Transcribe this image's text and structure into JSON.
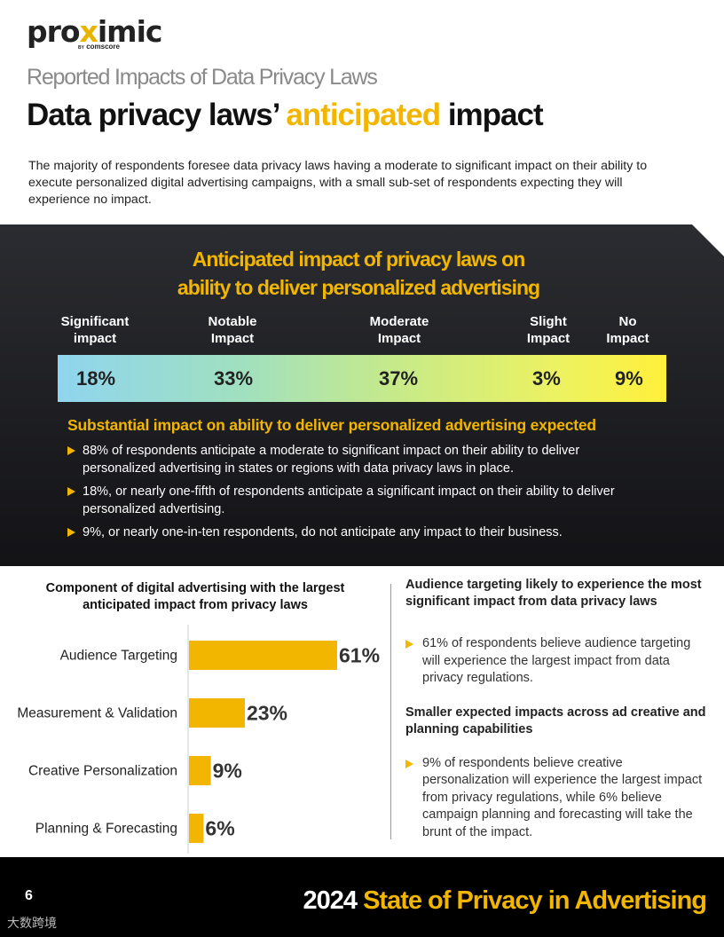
{
  "brand": {
    "logo_pre": "pro",
    "logo_x": "x",
    "logo_post": "imic",
    "logo_by": "BY",
    "logo_sub": "comscore"
  },
  "header": {
    "subhead": "Reported Impacts of Data Privacy Laws",
    "headline_pre": "Data privacy laws’",
    "headline_hl": "anticipated",
    "headline_post": "impact"
  },
  "intro": "The majority of respondents foresee data privacy laws having a moderate to significant impact on their ability to execute personalized digital advertising campaigns, with a small sub-set of respondents expecting they will experience no impact.",
  "panel": {
    "title_line1": "Anticipated impact of privacy laws on",
    "title_line2": "ability to deliver personalized advertising",
    "segments": [
      {
        "label_line1": "Significant",
        "label_line2": "impact",
        "value": "18%"
      },
      {
        "label_line1": "Notable",
        "label_line2": "Impact",
        "value": "33%"
      },
      {
        "label_line1": "Moderate",
        "label_line2": "Impact",
        "value": "37%"
      },
      {
        "label_line1": "Slight",
        "label_line2": "Impact",
        "value": "3%"
      },
      {
        "label_line1": "No",
        "label_line2": "Impact",
        "value": "9%"
      }
    ],
    "subtitle": "Substantial impact on ability to deliver personalized advertising expected",
    "bullets": [
      "88% of respondents anticipate a moderate to significant impact on their ability to deliver personalized advertising in states or regions with data privacy laws in place.",
      "18%, or nearly one-fifth of respondents anticipate a significant impact on their ability to deliver personalized advertising.",
      "9%, or nearly one-in-ten respondents, do not anticipate any impact to their business."
    ]
  },
  "chart_data": {
    "type": "bar",
    "orientation": "horizontal",
    "title": "Component of digital advertising with the largest anticipated impact from privacy laws",
    "categories": [
      "Audience Targeting",
      "Measurement & Validation",
      "Creative Personalization",
      "Planning & Forecasting"
    ],
    "values": [
      61,
      23,
      9,
      6
    ],
    "value_labels": [
      "61%",
      "23%",
      "9%",
      "6%"
    ],
    "xlim": [
      0,
      61
    ],
    "color": "#f2b600"
  },
  "right_column": {
    "heading1": "Audience targeting likely to experience the most significant impact from data privacy laws",
    "bullet1": "61% of respondents believe audience targeting will experience the largest impact from data privacy regulations.",
    "heading2": "Smaller expected impacts across ad creative and planning capabilities",
    "bullet2": "9% of respondents believe creative personalization will experience the largest impact from privacy regulations, while 6% believe campaign planning and forecasting will take the brunt of the impact."
  },
  "footer": {
    "page_number": "6",
    "year": "2024",
    "title": "State of Privacy in Advertising",
    "watermark": "大数跨境"
  }
}
